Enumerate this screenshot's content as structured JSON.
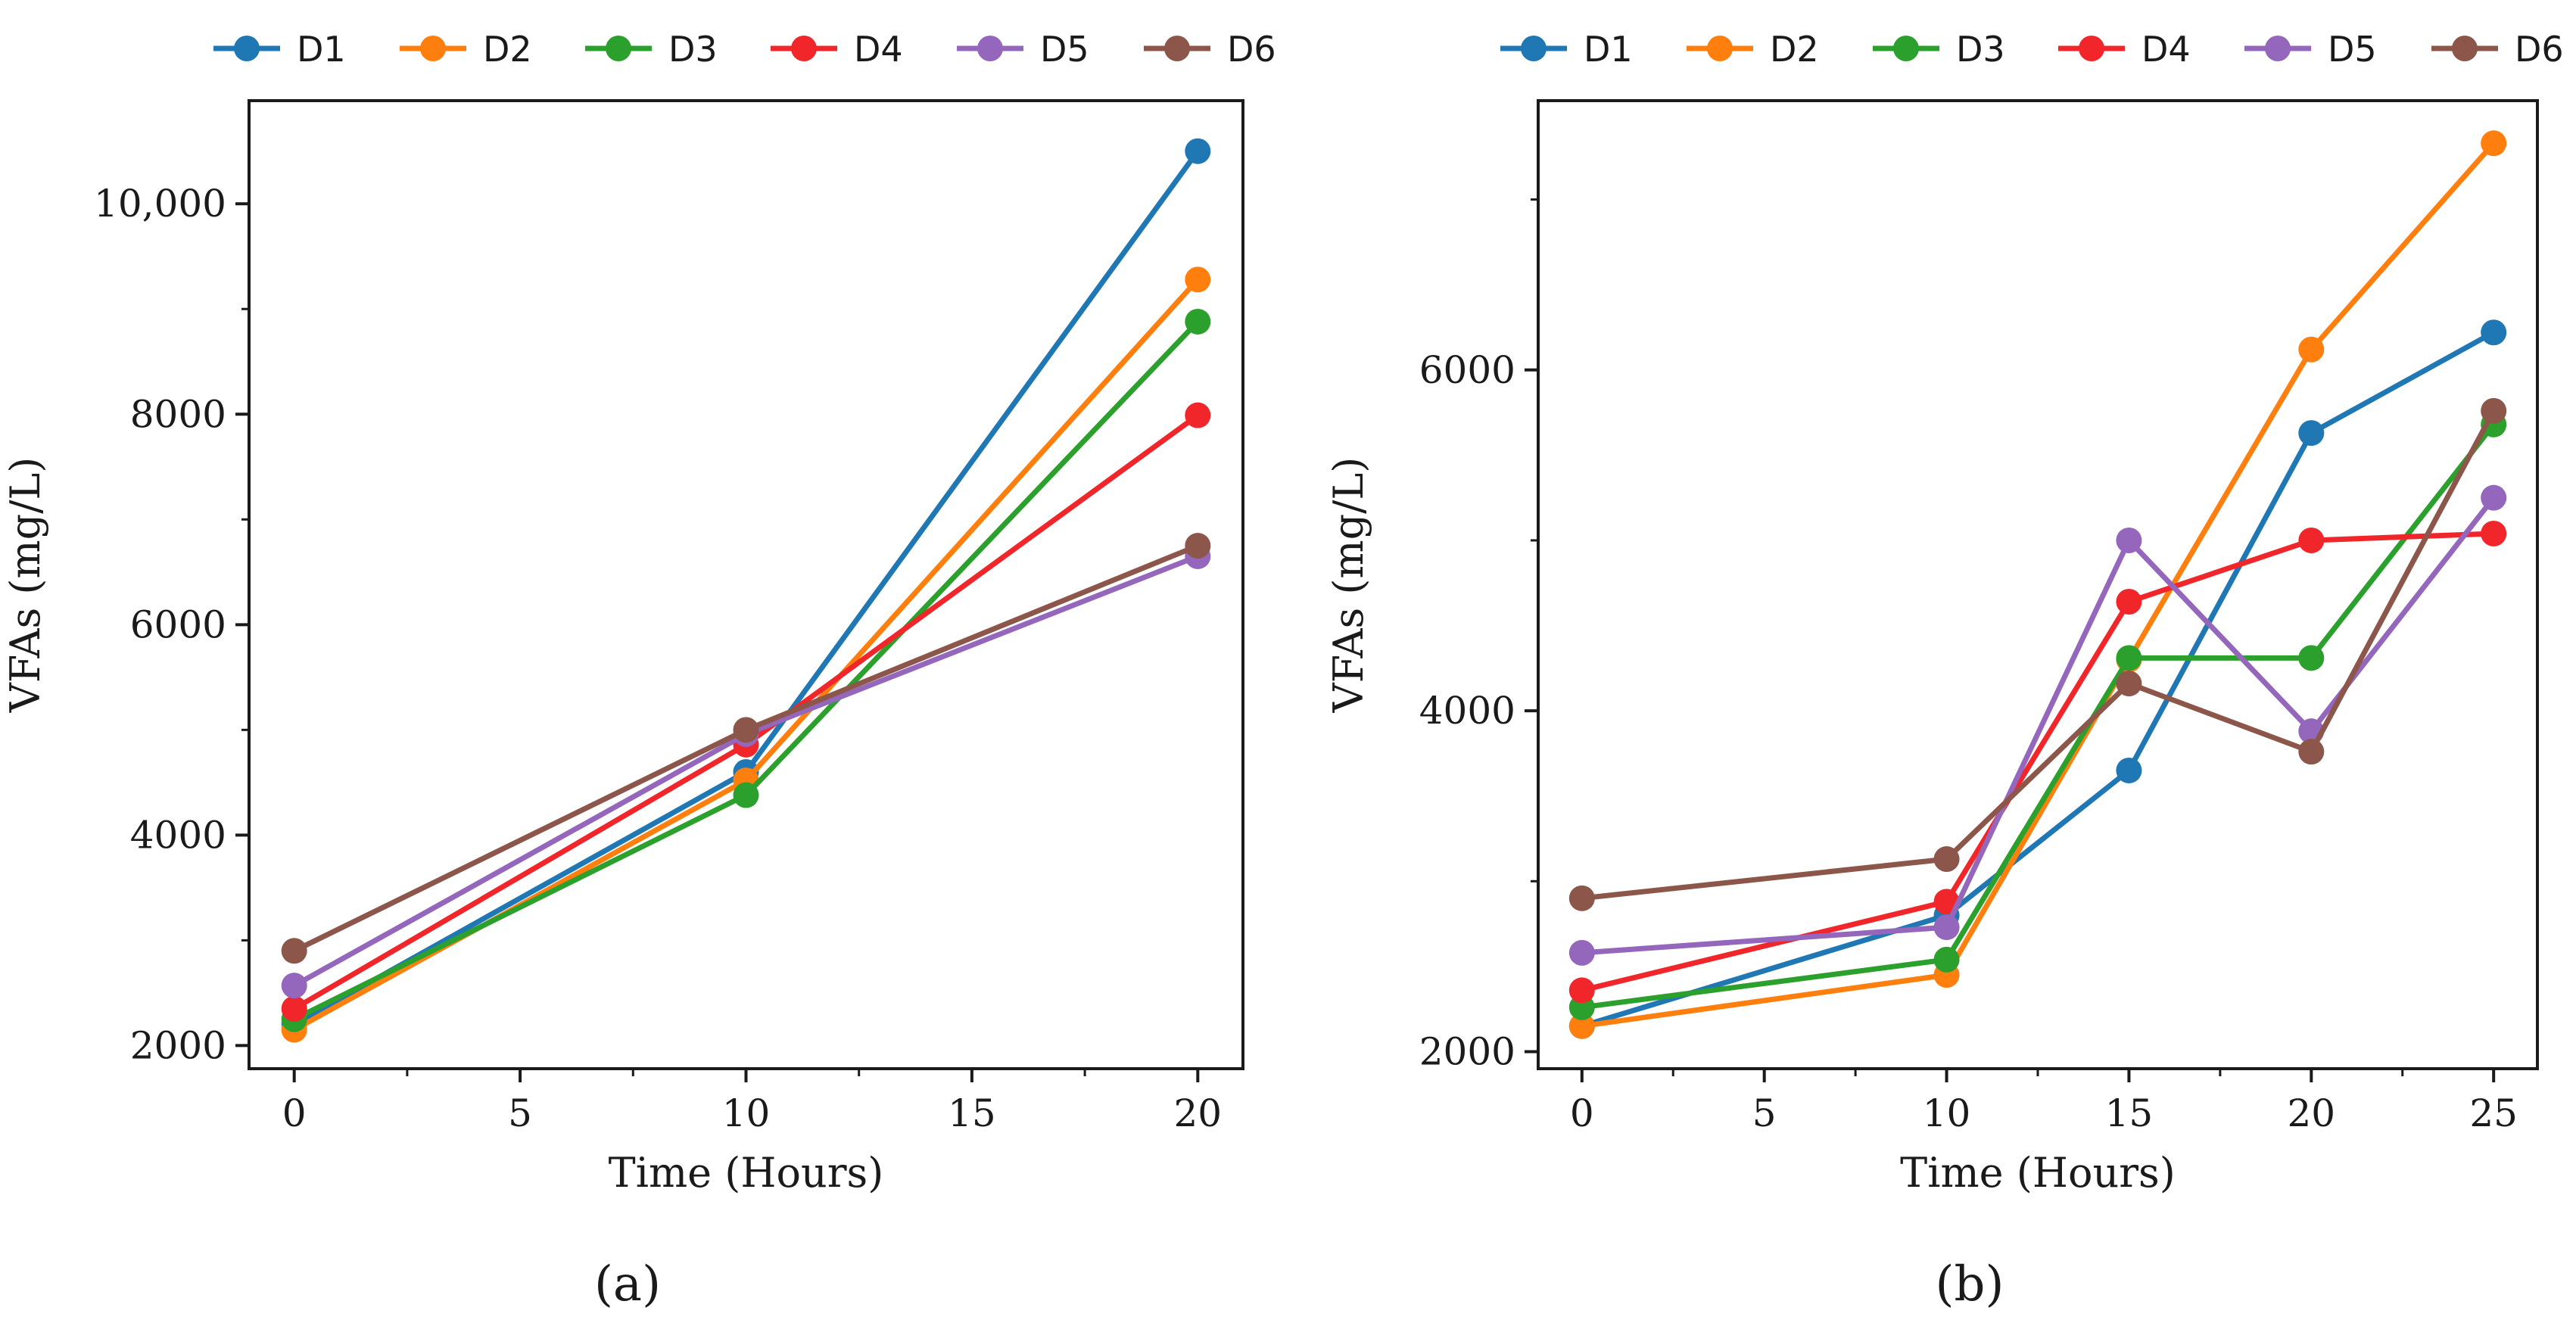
{
  "chart_data": [
    {
      "type": "line",
      "panel_label": "(a)",
      "xlabel": "Time (Hours)",
      "ylabel": "VFAs (mg/L)",
      "x": [
        0,
        10,
        20
      ],
      "xlim": [
        -1,
        21
      ],
      "ylim": [
        1780,
        10980
      ],
      "x_ticks": [
        0,
        5,
        10,
        15,
        20
      ],
      "x_tick_labels": [
        "0",
        "5",
        "10",
        "15",
        "20"
      ],
      "x_minor_ticks": [
        2.5,
        7.5,
        12.5,
        17.5
      ],
      "y_ticks": [
        2000,
        4000,
        6000,
        8000,
        10000
      ],
      "y_tick_labels": [
        "2000",
        "4000",
        "6000",
        "8000",
        "10,000"
      ],
      "y_minor_ticks": [
        3000,
        5000,
        7000,
        9000
      ],
      "legend_position": "top",
      "series": [
        {
          "name": "D1",
          "color": "#1f77b4",
          "values": [
            2200,
            4600,
            10500
          ]
        },
        {
          "name": "D2",
          "color": "#ff7f0e",
          "values": [
            2150,
            4520,
            9280
          ]
        },
        {
          "name": "D3",
          "color": "#2ca02c",
          "values": [
            2250,
            4380,
            8880
          ]
        },
        {
          "name": "D4",
          "color": "#f0262a",
          "values": [
            2350,
            4860,
            7990
          ]
        },
        {
          "name": "D5",
          "color": "#9467bd",
          "values": [
            2570,
            4960,
            6650
          ]
        },
        {
          "name": "D6",
          "color": "#8c564b",
          "values": [
            2900,
            5000,
            6750
          ]
        }
      ]
    },
    {
      "type": "line",
      "panel_label": "(b)",
      "xlabel": "Time (Hours)",
      "ylabel": "VFAs (mg/L)",
      "x": [
        0,
        10,
        15,
        20,
        25
      ],
      "xlim": [
        -1.2,
        26.2
      ],
      "ylim": [
        1900,
        7580
      ],
      "x_ticks": [
        0,
        5,
        10,
        15,
        20,
        25
      ],
      "x_tick_labels": [
        "0",
        "5",
        "10",
        "15",
        "20",
        "25"
      ],
      "x_minor_ticks": [
        2.5,
        7.5,
        12.5,
        17.5,
        22.5
      ],
      "y_ticks": [
        2000,
        4000,
        6000
      ],
      "y_tick_labels": [
        "2000",
        "4000",
        "6000"
      ],
      "y_minor_ticks": [
        3000,
        5000,
        7000
      ],
      "legend_position": "top",
      "series": [
        {
          "name": "D1",
          "color": "#1f77b4",
          "values": [
            2150,
            2800,
            3650,
            5630,
            6220
          ]
        },
        {
          "name": "D2",
          "color": "#ff7f0e",
          "values": [
            2150,
            2450,
            4300,
            6120,
            7330
          ]
        },
        {
          "name": "D3",
          "color": "#2ca02c",
          "values": [
            2260,
            2540,
            4310,
            4310,
            5680
          ]
        },
        {
          "name": "D4",
          "color": "#f0262a",
          "values": [
            2360,
            2880,
            4640,
            5000,
            5040
          ]
        },
        {
          "name": "D5",
          "color": "#9467bd",
          "values": [
            2580,
            2730,
            5000,
            3880,
            5250
          ]
        },
        {
          "name": "D6",
          "color": "#8c564b",
          "values": [
            2900,
            3130,
            4160,
            3760,
            5760
          ]
        }
      ]
    }
  ]
}
